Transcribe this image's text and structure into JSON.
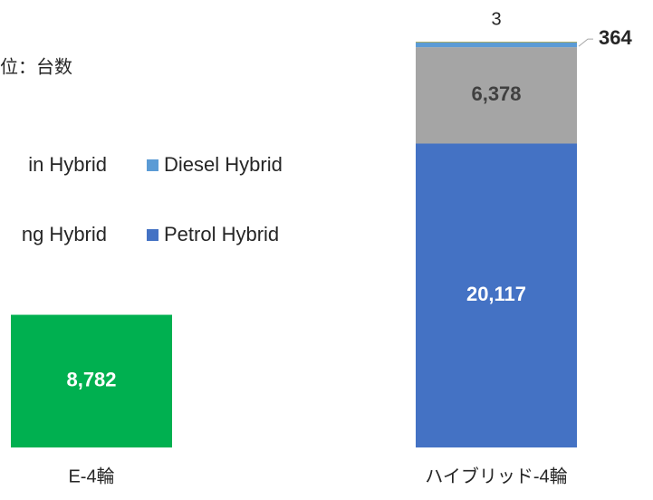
{
  "chart_data": {
    "type": "stacked_bar",
    "note_text": "位：台数",
    "categories": [
      "E-4輪",
      "ハイブリッド-4輪"
    ],
    "series": [
      {
        "color": "#00b050",
        "values": [
          8782,
          null
        ],
        "value_labels": [
          "8,782",
          null
        ]
      },
      {
        "name": "Petrol Hybrid",
        "color": "#4472c4",
        "values": [
          null,
          20117
        ],
        "value_labels": [
          null,
          "20,117"
        ]
      },
      {
        "name": "ng Hybrid",
        "color": "#a5a5a5",
        "values": [
          null,
          6378
        ],
        "value_labels": [
          null,
          "6,378"
        ]
      },
      {
        "name": "Diesel Hybrid",
        "color": "#5b9bd5",
        "values": [
          null,
          364
        ]
      },
      {
        "name": "in Hybrid",
        "color": "#ffc000",
        "values": [
          null,
          3
        ]
      }
    ]
  }
}
